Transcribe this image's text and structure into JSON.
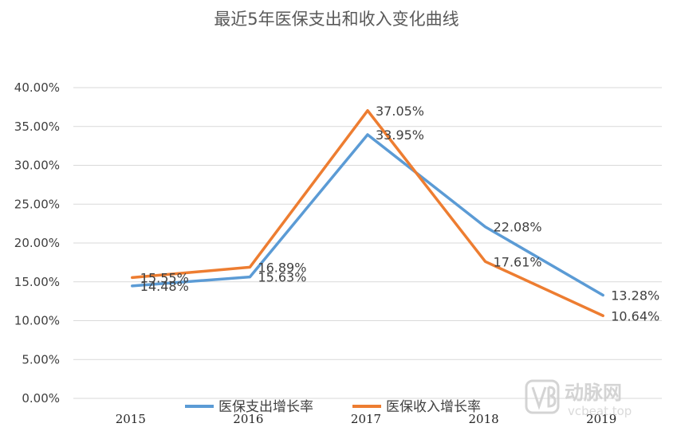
{
  "chart_data": {
    "type": "line",
    "title": "最近5年医保支出和收入变化曲线",
    "categories": [
      "2015",
      "2016",
      "2017",
      "2018",
      "2019"
    ],
    "y_ticks": [
      "0.00%",
      "5.00%",
      "10.00%",
      "15.00%",
      "20.00%",
      "25.00%",
      "30.00%",
      "35.00%",
      "40.00%"
    ],
    "ylim": [
      0,
      40
    ],
    "grid": true,
    "legend_position": "bottom",
    "series": [
      {
        "name": "医保支出增长率",
        "color": "#5B9BD5",
        "values": [
          14.48,
          15.63,
          33.95,
          22.08,
          13.28
        ],
        "labels": [
          "14.48%",
          "15.63%",
          "33.95%",
          "22.08%",
          "13.28%"
        ]
      },
      {
        "name": "医保收入增长率",
        "color": "#ED7D31",
        "values": [
          15.55,
          16.89,
          37.05,
          17.61,
          10.64
        ],
        "labels": [
          "15.55%",
          "16.89%",
          "37.05%",
          "17.61%",
          "10.64%"
        ]
      }
    ]
  },
  "watermark": {
    "brand": "动脉网",
    "url": "vcbeat.top",
    "icon": "vb-logo-icon"
  }
}
